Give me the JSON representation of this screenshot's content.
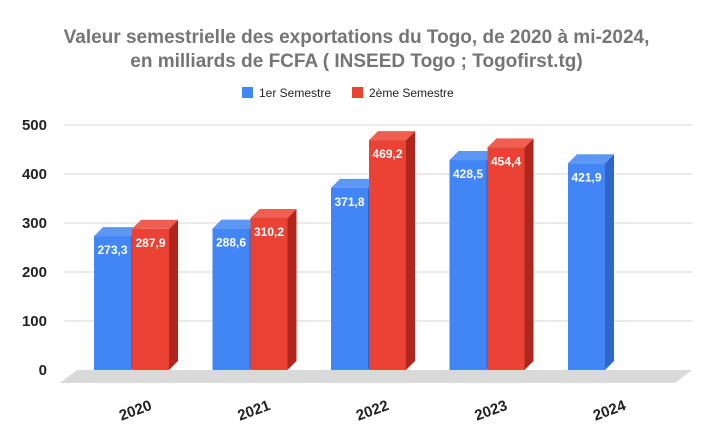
{
  "chart_data": {
    "type": "bar",
    "title_line1": "Valeur semestrielle des exportations du Togo, de 2020 à mi-2024,",
    "title_line2": "en milliards de FCFA ( INSEED Togo ; Togofirst.tg)",
    "categories": [
      "2020",
      "2021",
      "2022",
      "2023",
      "2024"
    ],
    "series": [
      {
        "name": "1er Semestre",
        "color": "#4285f4",
        "side_color": "#2f67c8",
        "top_color": "#5d97f6",
        "values": [
          273.3,
          288.6,
          371.8,
          428.5,
          421.9
        ],
        "labels": [
          "273,3",
          "288,6",
          "371,8",
          "428,5",
          "421,9"
        ]
      },
      {
        "name": "2ème Semestre",
        "color": "#ea4335",
        "side_color": "#b0261d",
        "top_color": "#ee5f52",
        "values": [
          287.9,
          310.2,
          469.2,
          454.4,
          null
        ],
        "labels": [
          "287,9",
          "310,2",
          "469,2",
          "454,4",
          null
        ]
      }
    ],
    "ylim": [
      0,
      500
    ],
    "yticks": [
      "0",
      "100",
      "200",
      "300",
      "400",
      "500"
    ],
    "grid": true,
    "legend_position": "top"
  }
}
